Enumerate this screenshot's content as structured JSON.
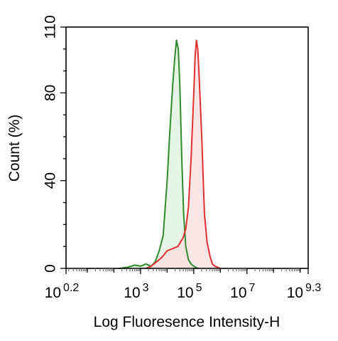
{
  "chart_data": {
    "type": "area",
    "xlabel": "Log Fluoresence Intensity-H",
    "ylabel": "Count  (%)",
    "x_scale": "log10",
    "xlim_log10": [
      0.2,
      9.3
    ],
    "ylim": [
      0,
      110
    ],
    "x_ticks": [
      {
        "base": "10",
        "exp": "0.2",
        "value_log10": 0.2
      },
      {
        "base": "10",
        "exp": "3",
        "value_log10": 3
      },
      {
        "base": "10",
        "exp": "5",
        "value_log10": 5
      },
      {
        "base": "10",
        "exp": "7",
        "value_log10": 7
      },
      {
        "base": "10",
        "exp": "9.3",
        "value_log10": 9.3
      }
    ],
    "y_ticks": [
      {
        "label": "0",
        "value": 0
      },
      {
        "label": "40",
        "value": 40
      },
      {
        "label": "80",
        "value": 80
      },
      {
        "label": "110",
        "value": 110
      }
    ],
    "grid": false,
    "series": [
      {
        "color": "#2e8b2e",
        "fill": "#dcefdc",
        "x_log10": [
          2.2,
          2.5,
          2.8,
          3.0,
          3.2,
          3.4,
          3.55,
          3.7,
          3.85,
          4.0,
          4.1,
          4.2,
          4.28,
          4.35,
          4.42,
          4.48,
          4.55,
          4.62,
          4.7,
          4.8,
          4.9,
          5.0,
          5.15
        ],
        "y": [
          0,
          0.5,
          1.5,
          1,
          2,
          1,
          3,
          8,
          15,
          40,
          62,
          82,
          95,
          104,
          100,
          82,
          50,
          25,
          10,
          4,
          2,
          1,
          0
        ]
      },
      {
        "color": "#e03030",
        "fill": "#f9dcdc",
        "x_log10": [
          3.2,
          3.4,
          3.6,
          3.8,
          4.0,
          4.2,
          4.4,
          4.6,
          4.7,
          4.8,
          4.9,
          5.0,
          5.05,
          5.1,
          5.15,
          5.2,
          5.3,
          5.4,
          5.5,
          5.6,
          5.7,
          5.8,
          6.0
        ],
        "y": [
          0,
          1,
          3,
          5,
          8,
          9,
          10,
          14,
          18,
          28,
          50,
          80,
          96,
          104,
          100,
          88,
          60,
          25,
          12,
          6,
          2,
          1,
          0
        ]
      }
    ]
  }
}
